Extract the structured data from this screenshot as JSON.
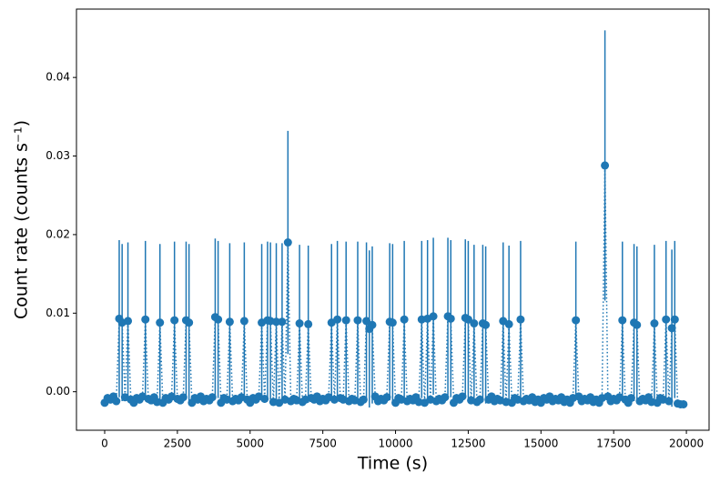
{
  "chart_data": {
    "type": "errorbar",
    "xlabel": "Time (s)",
    "ylabel": "Count rate (counts s⁻¹)",
    "xlim": [
      -970,
      20780
    ],
    "ylim": [
      -0.0049,
      0.0487
    ],
    "xticks": [
      0,
      2500,
      5000,
      7500,
      10000,
      12500,
      15000,
      17500,
      20000
    ],
    "yticks": [
      {
        "value": 0,
        "label": "0.00"
      },
      {
        "value": 0.01,
        "label": "0.01"
      },
      {
        "value": 0.02,
        "label": "0.02"
      },
      {
        "value": 0.03,
        "label": "0.03"
      },
      {
        "value": 0.04,
        "label": "0.04"
      }
    ],
    "grid": false,
    "x": [
      0,
      100,
      200,
      300,
      400,
      500,
      600,
      700,
      800,
      900,
      1000,
      1100,
      1200,
      1300,
      1400,
      1500,
      1600,
      1700,
      1800,
      1900,
      2000,
      2100,
      2200,
      2300,
      2400,
      2500,
      2600,
      2700,
      2800,
      2900,
      3000,
      3100,
      3200,
      3300,
      3400,
      3500,
      3600,
      3700,
      3800,
      3900,
      4000,
      4100,
      4200,
      4300,
      4400,
      4500,
      4600,
      4700,
      4800,
      4900,
      5000,
      5100,
      5200,
      5300,
      5400,
      5500,
      5600,
      5700,
      5800,
      5900,
      6000,
      6100,
      6200,
      6300,
      6400,
      6500,
      6600,
      6700,
      6800,
      6900,
      7000,
      7100,
      7200,
      7300,
      7400,
      7500,
      7600,
      7700,
      7800,
      7900,
      8000,
      8100,
      8200,
      8300,
      8400,
      8500,
      8600,
      8700,
      8800,
      8900,
      9000,
      9100,
      9200,
      9300,
      9400,
      9500,
      9600,
      9700,
      9800,
      9900,
      10000,
      10100,
      10200,
      10300,
      10400,
      10500,
      10600,
      10700,
      10800,
      10900,
      11000,
      11100,
      11200,
      11300,
      11400,
      11500,
      11600,
      11700,
      11800,
      11900,
      12000,
      12100,
      12200,
      12300,
      12400,
      12500,
      12600,
      12700,
      12800,
      12900,
      13000,
      13100,
      13200,
      13300,
      13400,
      13500,
      13600,
      13700,
      13800,
      13900,
      14000,
      14100,
      14200,
      14300,
      14400,
      14500,
      14600,
      14700,
      14800,
      14900,
      15000,
      15100,
      15200,
      15300,
      15400,
      15500,
      15600,
      15700,
      15800,
      15900,
      16000,
      16100,
      16200,
      16300,
      16400,
      16500,
      16600,
      16700,
      16800,
      16900,
      17000,
      17100,
      17200,
      17300,
      17400,
      17500,
      17600,
      17700,
      17800,
      17900,
      18000,
      18100,
      18200,
      18300,
      18400,
      18500,
      18600,
      18700,
      18800,
      18900,
      19000,
      19100,
      19200,
      19300,
      19400,
      19500,
      19600,
      19700,
      19800,
      19900
    ],
    "series": [
      {
        "color": "#1f77b4",
        "values": [
          -0.0014,
          -0.0008,
          -0.001,
          -0.0006,
          -0.0012,
          0.0093,
          0.0088,
          -0.0007,
          0.009,
          -0.001,
          -0.0014,
          -0.0008,
          -0.001,
          -0.0006,
          0.0092,
          -0.0009,
          -0.0011,
          -0.0007,
          -0.0013,
          0.0088,
          -0.0014,
          -0.0008,
          -0.001,
          -0.0006,
          0.0091,
          -0.0009,
          -0.0011,
          -0.0007,
          0.0091,
          0.0088,
          -0.0014,
          -0.0008,
          -0.001,
          -0.0006,
          -0.0012,
          -0.0009,
          -0.0011,
          -0.0007,
          0.0095,
          0.0092,
          -0.0014,
          -0.0008,
          -0.001,
          0.0089,
          -0.0012,
          -0.0009,
          -0.0011,
          -0.0007,
          0.009,
          -0.001,
          -0.0014,
          -0.0008,
          -0.001,
          -0.0006,
          0.0088,
          -0.0009,
          0.0091,
          0.009,
          -0.0013,
          0.0089,
          -0.0014,
          0.0089,
          -0.001,
          0.019,
          -0.0012,
          -0.0009,
          -0.0011,
          0.0087,
          -0.0013,
          -0.001,
          0.0086,
          -0.0008,
          -0.001,
          -0.0006,
          -0.0012,
          -0.0009,
          -0.0011,
          -0.0007,
          0.0088,
          -0.001,
          0.0092,
          -0.0008,
          -0.001,
          0.0091,
          -0.0012,
          -0.0009,
          -0.0011,
          0.0091,
          -0.0013,
          -0.001,
          0.009,
          0.008,
          0.0085,
          -0.0006,
          -0.0012,
          -0.0009,
          -0.0011,
          -0.0007,
          0.0089,
          0.0088,
          -0.0014,
          -0.0008,
          -0.001,
          0.0092,
          -0.0012,
          -0.0009,
          -0.0011,
          -0.0007,
          -0.0013,
          0.0092,
          -0.0014,
          0.0093,
          -0.001,
          0.0096,
          -0.0012,
          -0.0009,
          -0.0011,
          -0.0007,
          0.0096,
          0.0093,
          -0.0014,
          -0.0008,
          -0.001,
          -0.0006,
          0.0094,
          0.0092,
          -0.0011,
          0.0087,
          -0.0013,
          -0.001,
          0.0087,
          0.0085,
          -0.001,
          -0.0006,
          -0.0012,
          -0.0009,
          -0.0011,
          0.009,
          -0.0013,
          0.0086,
          -0.0014,
          -0.0008,
          -0.001,
          0.0092,
          -0.0012,
          -0.0009,
          -0.0011,
          -0.0007,
          -0.0013,
          -0.001,
          -0.0014,
          -0.0008,
          -0.001,
          -0.0006,
          -0.0012,
          -0.0009,
          -0.0011,
          -0.0007,
          -0.0013,
          -0.001,
          -0.0014,
          -0.0008,
          0.0091,
          -0.0006,
          -0.0012,
          -0.0009,
          -0.0011,
          -0.0007,
          -0.0013,
          -0.001,
          -0.0014,
          -0.0008,
          0.0288,
          -0.0006,
          -0.0012,
          -0.0009,
          -0.0011,
          -0.0007,
          0.0091,
          -0.001,
          -0.0014,
          -0.0008,
          0.0088,
          0.0085,
          -0.0012,
          -0.0009,
          -0.0011,
          -0.0007,
          -0.0013,
          0.0087,
          -0.0014,
          -0.0008,
          -0.001,
          0.0092,
          -0.0012,
          0.0081,
          0.0092,
          -0.0015,
          -0.0016,
          -0.0016
        ],
        "errors": [
          0.0005,
          0.0005,
          0.0005,
          0.0005,
          0.0005,
          0.01,
          0.01,
          0.0005,
          0.01,
          0.0005,
          0.0005,
          0.0005,
          0.0005,
          0.0005,
          0.01,
          0.0005,
          0.0005,
          0.0005,
          0.0005,
          0.01,
          0.0005,
          0.0005,
          0.0005,
          0.0005,
          0.01,
          0.0005,
          0.0005,
          0.0005,
          0.01,
          0.01,
          0.0005,
          0.0005,
          0.0005,
          0.0005,
          0.0005,
          0.0005,
          0.0005,
          0.0005,
          0.01,
          0.01,
          0.0005,
          0.0005,
          0.0005,
          0.01,
          0.0005,
          0.0005,
          0.0005,
          0.0005,
          0.01,
          0.0005,
          0.0005,
          0.0005,
          0.0005,
          0.0005,
          0.01,
          0.0005,
          0.01,
          0.01,
          0.0005,
          0.01,
          0.0005,
          0.01,
          0.0005,
          0.0142,
          0.0005,
          0.0005,
          0.0005,
          0.01,
          0.0005,
          0.0005,
          0.01,
          0.0005,
          0.0005,
          0.0005,
          0.0005,
          0.0005,
          0.0005,
          0.0005,
          0.01,
          0.0005,
          0.01,
          0.0005,
          0.0005,
          0.01,
          0.0005,
          0.0005,
          0.0005,
          0.01,
          0.0005,
          0.0005,
          0.01,
          0.01,
          0.01,
          0.0005,
          0.0005,
          0.0005,
          0.0005,
          0.0005,
          0.01,
          0.01,
          0.0005,
          0.0005,
          0.0005,
          0.01,
          0.0005,
          0.0005,
          0.0005,
          0.0005,
          0.0005,
          0.01,
          0.0005,
          0.01,
          0.0005,
          0.01,
          0.0005,
          0.0005,
          0.0005,
          0.0005,
          0.01,
          0.01,
          0.0005,
          0.0005,
          0.0005,
          0.0005,
          0.01,
          0.01,
          0.0005,
          0.01,
          0.0005,
          0.0005,
          0.01,
          0.01,
          0.0005,
          0.0005,
          0.0005,
          0.0005,
          0.0005,
          0.01,
          0.0005,
          0.01,
          0.0005,
          0.0005,
          0.0005,
          0.01,
          0.0005,
          0.0005,
          0.0005,
          0.0005,
          0.0005,
          0.0005,
          0.0005,
          0.0005,
          0.0005,
          0.0005,
          0.0005,
          0.0005,
          0.0005,
          0.0005,
          0.0005,
          0.0005,
          0.0005,
          0.0005,
          0.01,
          0.0005,
          0.0005,
          0.0005,
          0.0005,
          0.0005,
          0.0005,
          0.0005,
          0.0005,
          0.0005,
          0.0172,
          0.0005,
          0.0005,
          0.0005,
          0.0005,
          0.0005,
          0.01,
          0.0005,
          0.0005,
          0.0005,
          0.01,
          0.01,
          0.0005,
          0.0005,
          0.0005,
          0.0005,
          0.0005,
          0.01,
          0.0005,
          0.0005,
          0.0005,
          0.01,
          0.0005,
          0.01,
          0.01,
          0.0005,
          0.0005,
          0.0005
        ]
      }
    ]
  }
}
